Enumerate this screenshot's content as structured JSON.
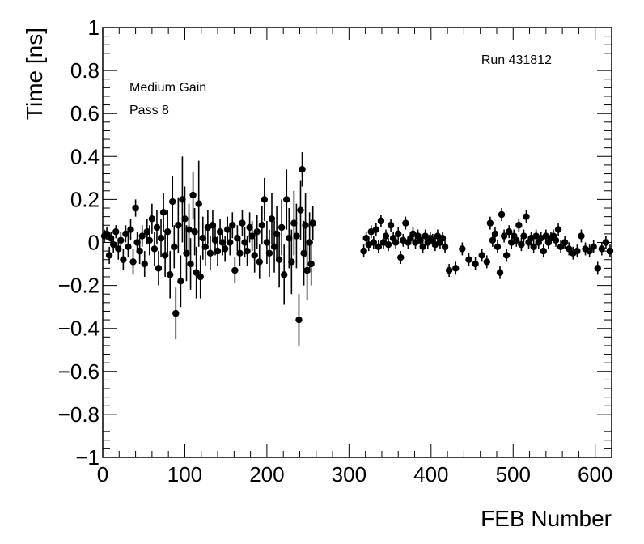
{
  "chart_data": {
    "type": "scatter",
    "title": "",
    "xlabel": "FEB Number",
    "ylabel": "Time [ns]",
    "xlim": [
      0,
      620
    ],
    "ylim": [
      -1,
      1
    ],
    "xticks": [
      "0",
      "100",
      "200",
      "300",
      "400",
      "500",
      "600"
    ],
    "yticks": [
      "−1",
      "−0.8",
      "−0.6",
      "−0.4",
      "−0.2",
      "0",
      "0.2",
      "0.4",
      "0.6",
      "0.8",
      "1"
    ],
    "annotations": {
      "gain": "Medium Gain",
      "pass": "Pass 8",
      "run": "Run 431812"
    },
    "grid": false,
    "legend": "none",
    "marker_color": "#000000",
    "points": [
      [
        2,
        0.03,
        0.03
      ],
      [
        5,
        0.04,
        0.03
      ],
      [
        8,
        -0.06,
        0.04
      ],
      [
        10,
        0.02,
        0.03
      ],
      [
        13,
        -0.01,
        0.04
      ],
      [
        16,
        0.05,
        0.03
      ],
      [
        19,
        -0.03,
        0.05
      ],
      [
        22,
        0.01,
        0.04
      ],
      [
        25,
        -0.08,
        0.05
      ],
      [
        28,
        0.04,
        0.04
      ],
      [
        31,
        -0.02,
        0.05
      ],
      [
        34,
        0.06,
        0.05
      ],
      [
        37,
        -0.09,
        0.06
      ],
      [
        40,
        0.16,
        0.04
      ],
      [
        42,
        0.0,
        0.05
      ],
      [
        45,
        -0.04,
        0.06
      ],
      [
        48,
        0.03,
        0.05
      ],
      [
        51,
        -0.1,
        0.06
      ],
      [
        54,
        0.05,
        0.06
      ],
      [
        57,
        0.01,
        0.07
      ],
      [
        60,
        0.11,
        0.07
      ],
      [
        63,
        -0.03,
        0.08
      ],
      [
        66,
        0.07,
        0.08
      ],
      [
        68,
        -0.12,
        0.08
      ],
      [
        71,
        0.02,
        0.09
      ],
      [
        74,
        0.14,
        0.09
      ],
      [
        76,
        -0.06,
        0.1
      ],
      [
        79,
        0.05,
        0.1
      ],
      [
        82,
        -0.15,
        0.11
      ],
      [
        85,
        0.19,
        0.12
      ],
      [
        87,
        -0.02,
        0.1
      ],
      [
        89,
        -0.33,
        0.12
      ],
      [
        92,
        0.08,
        0.13
      ],
      [
        95,
        -0.18,
        0.12
      ],
      [
        97,
        0.2,
        0.2
      ],
      [
        100,
        0.11,
        0.15
      ],
      [
        102,
        -0.05,
        0.13
      ],
      [
        105,
        0.06,
        0.12
      ],
      [
        107,
        -0.1,
        0.12
      ],
      [
        110,
        0.22,
        0.11
      ],
      [
        112,
        0.05,
        0.11
      ],
      [
        114,
        -0.14,
        0.12
      ],
      [
        117,
        0.18,
        0.2
      ],
      [
        119,
        -0.16,
        0.1
      ],
      [
        122,
        0.02,
        0.1
      ],
      [
        125,
        -0.02,
        0.09
      ],
      [
        128,
        0.07,
        0.08
      ],
      [
        131,
        -0.05,
        0.08
      ],
      [
        134,
        0.08,
        0.07
      ],
      [
        137,
        0.01,
        0.07
      ],
      [
        140,
        -0.04,
        0.07
      ],
      [
        143,
        0.05,
        0.06
      ],
      [
        146,
        0.0,
        0.06
      ],
      [
        149,
        -0.03,
        0.06
      ],
      [
        152,
        0.06,
        0.06
      ],
      [
        155,
        0.0,
        0.06
      ],
      [
        158,
        0.08,
        0.06
      ],
      [
        161,
        -0.13,
        0.06
      ],
      [
        164,
        0.02,
        0.06
      ],
      [
        167,
        -0.05,
        0.06
      ],
      [
        170,
        0.09,
        0.06
      ],
      [
        173,
        0.0,
        0.07
      ],
      [
        176,
        -0.04,
        0.07
      ],
      [
        179,
        0.07,
        0.07
      ],
      [
        182,
        0.03,
        0.07
      ],
      [
        185,
        -0.06,
        0.08
      ],
      [
        188,
        0.05,
        0.08
      ],
      [
        191,
        -0.09,
        0.08
      ],
      [
        194,
        0.08,
        0.09
      ],
      [
        197,
        0.2,
        0.1
      ],
      [
        200,
        0.0,
        0.1
      ],
      [
        203,
        -0.05,
        0.11
      ],
      [
        206,
        0.11,
        0.12
      ],
      [
        209,
        -0.02,
        0.12
      ],
      [
        212,
        0.04,
        0.13
      ],
      [
        215,
        -0.08,
        0.13
      ],
      [
        218,
        0.07,
        0.13
      ],
      [
        221,
        -0.15,
        0.14
      ],
      [
        224,
        0.2,
        0.14
      ],
      [
        227,
        0.02,
        0.14
      ],
      [
        230,
        -0.09,
        0.15
      ],
      [
        233,
        0.09,
        0.15
      ],
      [
        236,
        0.03,
        0.15
      ],
      [
        239,
        -0.36,
        0.12
      ],
      [
        241,
        0.15,
        0.14
      ],
      [
        243,
        0.34,
        0.08
      ],
      [
        245,
        -0.05,
        0.15
      ],
      [
        247,
        0.08,
        0.15
      ],
      [
        249,
        -0.13,
        0.14
      ],
      [
        252,
        0.0,
        0.14
      ],
      [
        254,
        -0.1,
        0.1
      ],
      [
        256,
        0.09,
        0.08
      ],
      [
        318,
        -0.04,
        0.03
      ],
      [
        321,
        0.02,
        0.03
      ],
      [
        324,
        -0.01,
        0.03
      ],
      [
        327,
        0.05,
        0.03
      ],
      [
        330,
        0.0,
        0.03
      ],
      [
        333,
        0.06,
        0.03
      ],
      [
        336,
        -0.02,
        0.03
      ],
      [
        339,
        0.1,
        0.03
      ],
      [
        342,
        0.0,
        0.03
      ],
      [
        345,
        0.03,
        0.03
      ],
      [
        348,
        -0.01,
        0.03
      ],
      [
        351,
        0.08,
        0.03
      ],
      [
        354,
        0.02,
        0.03
      ],
      [
        357,
        0.0,
        0.03
      ],
      [
        360,
        0.04,
        0.03
      ],
      [
        363,
        -0.07,
        0.03
      ],
      [
        366,
        0.01,
        0.03
      ],
      [
        369,
        0.09,
        0.03
      ],
      [
        372,
        0.0,
        0.03
      ],
      [
        375,
        0.02,
        0.03
      ],
      [
        378,
        0.04,
        0.03
      ],
      [
        381,
        0.0,
        0.03
      ],
      [
        384,
        0.03,
        0.03
      ],
      [
        387,
        0.01,
        0.03
      ],
      [
        390,
        -0.02,
        0.03
      ],
      [
        393,
        0.03,
        0.03
      ],
      [
        396,
        0.0,
        0.03
      ],
      [
        399,
        0.02,
        0.03
      ],
      [
        402,
        0.01,
        0.03
      ],
      [
        405,
        -0.01,
        0.03
      ],
      [
        408,
        0.03,
        0.03
      ],
      [
        411,
        0.0,
        0.03
      ],
      [
        414,
        0.02,
        0.03
      ],
      [
        417,
        -0.02,
        0.03
      ],
      [
        422,
        -0.13,
        0.03
      ],
      [
        430,
        -0.12,
        0.03
      ],
      [
        438,
        -0.03,
        0.03
      ],
      [
        446,
        -0.08,
        0.03
      ],
      [
        454,
        -0.1,
        0.03
      ],
      [
        462,
        -0.06,
        0.03
      ],
      [
        468,
        -0.09,
        0.03
      ],
      [
        472,
        0.09,
        0.03
      ],
      [
        475,
        0.01,
        0.03
      ],
      [
        478,
        0.04,
        0.03
      ],
      [
        481,
        -0.02,
        0.03
      ],
      [
        484,
        -0.14,
        0.03
      ],
      [
        486,
        0.13,
        0.03
      ],
      [
        489,
        0.03,
        0.03
      ],
      [
        492,
        -0.06,
        0.03
      ],
      [
        495,
        0.05,
        0.03
      ],
      [
        498,
        0.0,
        0.03
      ],
      [
        501,
        0.03,
        0.03
      ],
      [
        504,
        0.01,
        0.03
      ],
      [
        507,
        0.08,
        0.03
      ],
      [
        510,
        -0.01,
        0.03
      ],
      [
        513,
        0.03,
        0.03
      ],
      [
        516,
        0.12,
        0.03
      ],
      [
        519,
        0.0,
        0.03
      ],
      [
        522,
        0.02,
        0.03
      ],
      [
        525,
        -0.02,
        0.03
      ],
      [
        528,
        0.03,
        0.03
      ],
      [
        531,
        0.0,
        0.03
      ],
      [
        534,
        0.02,
        0.03
      ],
      [
        537,
        -0.04,
        0.03
      ],
      [
        540,
        0.03,
        0.03
      ],
      [
        543,
        0.0,
        0.03
      ],
      [
        546,
        0.02,
        0.03
      ],
      [
        549,
        0.03,
        0.03
      ],
      [
        552,
        0.01,
        0.03
      ],
      [
        555,
        0.06,
        0.03
      ],
      [
        558,
        -0.02,
        0.03
      ],
      [
        563,
        0.0,
        0.03
      ],
      [
        568,
        -0.03,
        0.03
      ],
      [
        573,
        -0.05,
        0.03
      ],
      [
        578,
        -0.04,
        0.03
      ],
      [
        583,
        0.03,
        0.03
      ],
      [
        588,
        -0.03,
        0.03
      ],
      [
        593,
        -0.04,
        0.03
      ],
      [
        598,
        -0.02,
        0.03
      ],
      [
        603,
        -0.12,
        0.03
      ],
      [
        608,
        -0.03,
        0.03
      ],
      [
        613,
        0.0,
        0.03
      ],
      [
        618,
        -0.04,
        0.03
      ]
    ]
  }
}
